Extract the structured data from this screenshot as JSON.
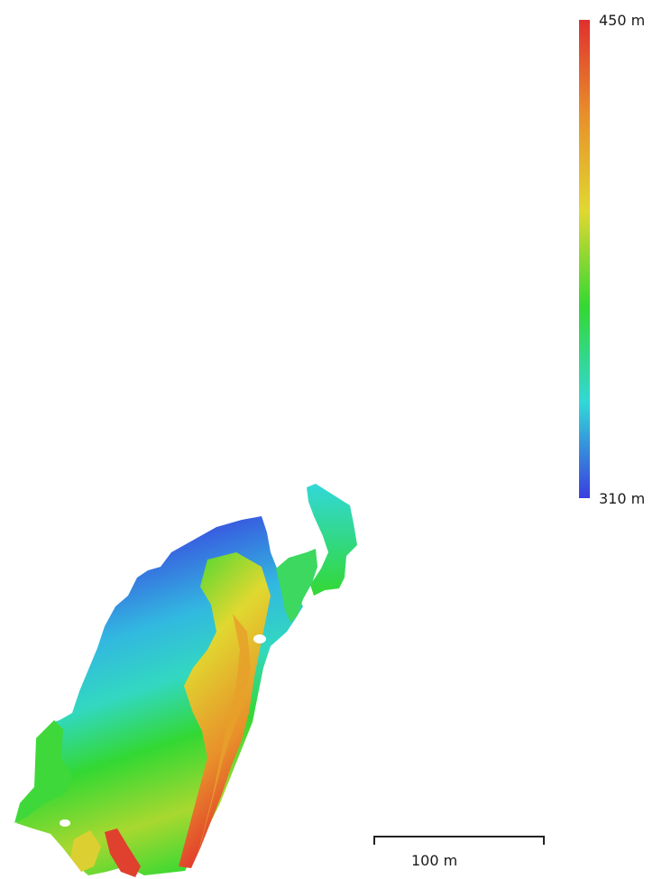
{
  "legend": {
    "max_label": "450 m",
    "min_label": "310 m",
    "max_value": 450,
    "min_value": 310,
    "unit": "m",
    "gradient_colors": [
      "#e0302e",
      "#e8902a",
      "#e0d830",
      "#33d833",
      "#32d8d8",
      "#3a3ee0"
    ]
  },
  "scalebar": {
    "label": "100 m",
    "length": 100,
    "unit": "m"
  },
  "map": {
    "colors": {
      "low": "#3a3ee0",
      "low_mid": "#32d8d8",
      "mid": "#33d833",
      "high_mid": "#e0d830",
      "high_orange": "#e8902a",
      "high": "#e0302e"
    }
  }
}
